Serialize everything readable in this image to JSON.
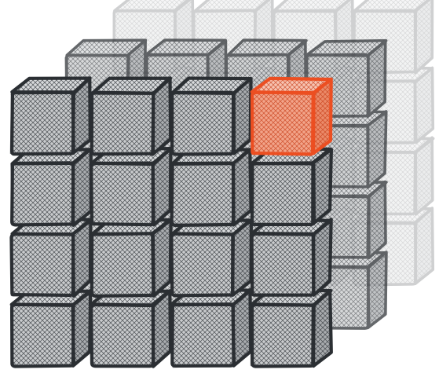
{
  "figure": {
    "kind": "sketched-3d-cube-grid",
    "layers": [
      {
        "depth": 0,
        "rows": 4,
        "cols": 4,
        "opacity": 1.0
      },
      {
        "depth": 1,
        "rows": 4,
        "cols": 4,
        "opacity": 0.72
      },
      {
        "depth": 2,
        "rows": 4,
        "cols": 4,
        "opacity": 0.22
      }
    ],
    "highlighted_cube": {
      "layer": 0,
      "row": 0,
      "col": 3
    },
    "colors": {
      "ink": "#2b2f33",
      "cube_face": "#c9cbcd",
      "hatch": "#3a3e42",
      "highlight": "#ec4f22",
      "highlight_face": "#f2a48a",
      "background": "#ffffff"
    },
    "style": {
      "hatch": "crosshatch",
      "outline": "hand-drawn"
    }
  }
}
